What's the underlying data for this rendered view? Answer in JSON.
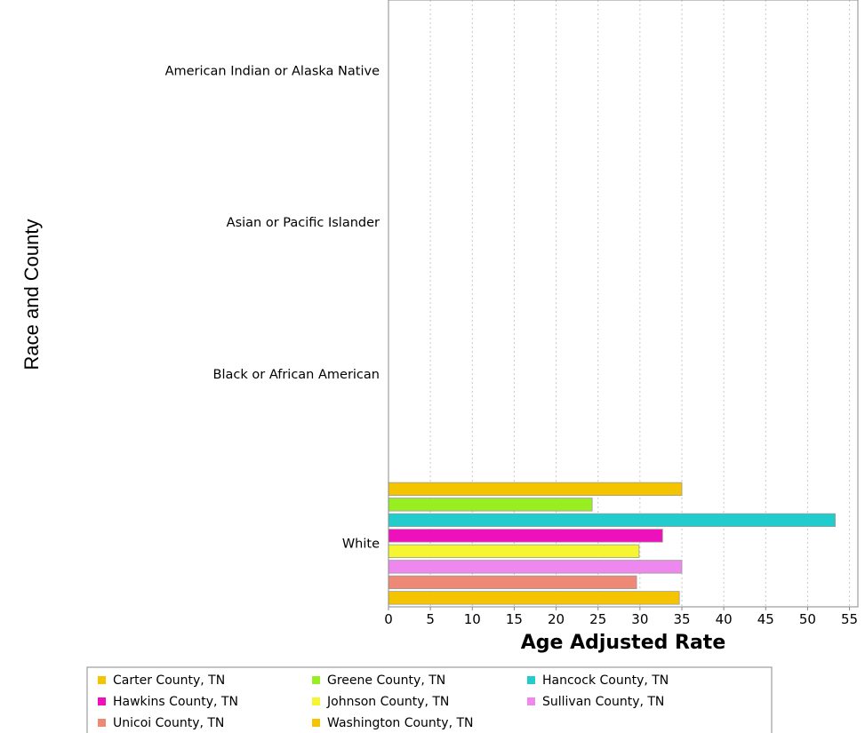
{
  "chart_data": {
    "type": "bar",
    "orientation": "horizontal",
    "title": "",
    "xlabel": "Age Adjusted Rate",
    "ylabel": "Race and County",
    "xlim": [
      0,
      56
    ],
    "xticks": [
      0,
      5,
      10,
      15,
      20,
      25,
      30,
      35,
      40,
      45,
      50,
      55
    ],
    "categories": [
      "American Indian or Alaska Native",
      "Asian or Pacific Islander",
      "Black or African American",
      "White"
    ],
    "grid": "vertical dotted",
    "legend_position": "bottom",
    "series": [
      {
        "name": "Carter County, TN",
        "color": "#f5c400",
        "values": [
          null,
          null,
          null,
          35.0
        ]
      },
      {
        "name": "Greene County, TN",
        "color": "#99ee22",
        "values": [
          null,
          null,
          null,
          24.3
        ]
      },
      {
        "name": "Hancock County, TN",
        "color": "#22cccc",
        "values": [
          null,
          null,
          null,
          53.3
        ]
      },
      {
        "name": "Hawkins County, TN",
        "color": "#ee11bb",
        "values": [
          null,
          null,
          null,
          32.7
        ]
      },
      {
        "name": "Johnson County, TN",
        "color": "#f5f531",
        "values": [
          null,
          null,
          null,
          29.9
        ]
      },
      {
        "name": "Sullivan County, TN",
        "color": "#ee88ee",
        "values": [
          null,
          null,
          null,
          35.0
        ]
      },
      {
        "name": "Unicoi County, TN",
        "color": "#ee8877",
        "values": [
          null,
          null,
          null,
          29.6
        ]
      },
      {
        "name": "Washington County, TN",
        "color": "#f5c400",
        "values": [
          null,
          null,
          null,
          34.7
        ]
      }
    ]
  }
}
